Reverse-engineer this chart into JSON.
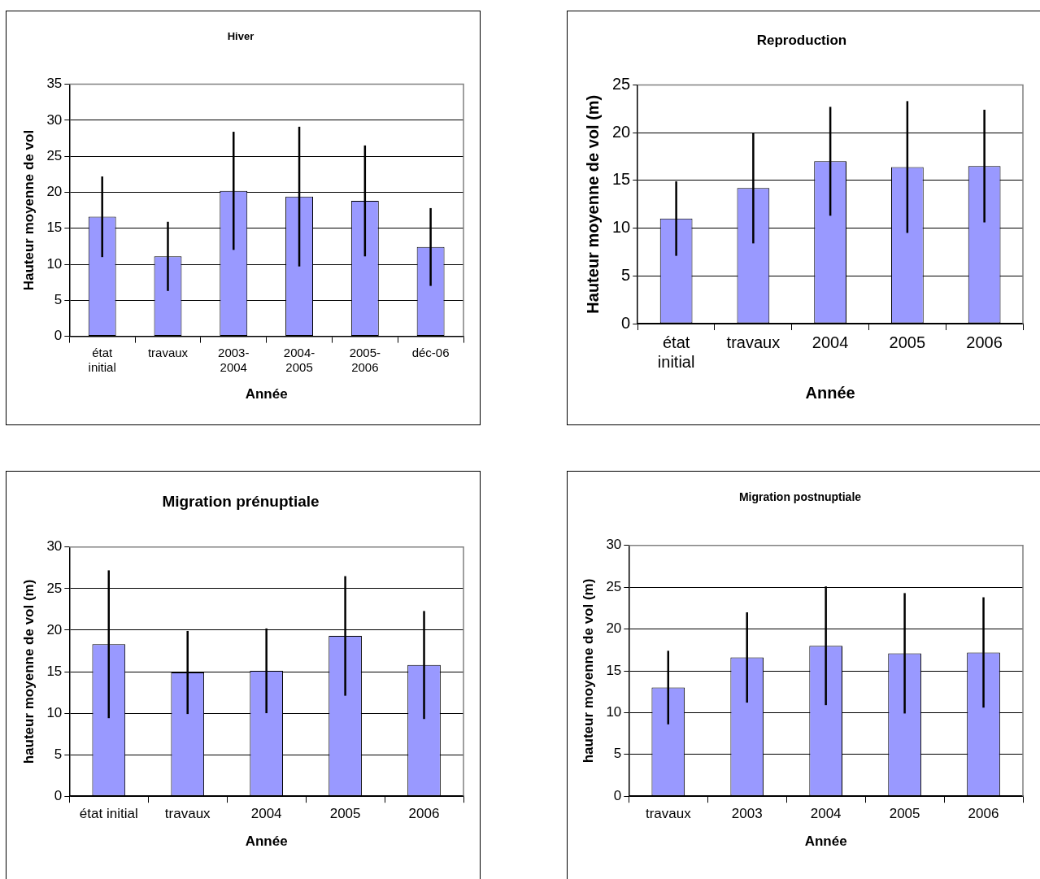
{
  "chart_data": [
    {
      "type": "bar",
      "title": "Hiver",
      "xlabel": "Année",
      "ylabel": "Hauteur moyenne de vol",
      "categories": [
        "état initial",
        "travaux",
        "2003-2004",
        "2004-2005",
        "2005-2006",
        "déc-06"
      ],
      "values": [
        16.6,
        11.1,
        20.2,
        19.4,
        18.8,
        12.4
      ],
      "errors": [
        5.6,
        4.8,
        8.2,
        9.7,
        7.7,
        5.4
      ],
      "color": "#9999ff",
      "ylim": [
        0,
        35
      ],
      "yticks": [
        0,
        5,
        10,
        15,
        20,
        25,
        30,
        35
      ],
      "grid": "y"
    },
    {
      "type": "bar",
      "title": "Reproduction",
      "xlabel": "Année",
      "ylabel": "Hauteur moyenne de vol (m)",
      "categories": [
        "état initial",
        "travaux",
        "2004",
        "2005",
        "2006"
      ],
      "values": [
        11.0,
        14.2,
        17.0,
        16.4,
        16.5
      ],
      "errors": [
        3.9,
        5.8,
        5.7,
        6.9,
        5.9
      ],
      "color": "#9999ff",
      "ylim": [
        0,
        25
      ],
      "yticks": [
        0,
        5,
        10,
        15,
        20,
        25
      ],
      "grid": "y"
    },
    {
      "type": "bar",
      "title": "Migration prénuptiale",
      "xlabel": "Année",
      "ylabel": "hauteur moyenne de vol (m)",
      "categories": [
        "état initial",
        "travaux",
        "2004",
        "2005",
        "2006"
      ],
      "values": [
        18.3,
        14.9,
        15.1,
        19.3,
        15.8
      ],
      "errors": [
        8.9,
        5.0,
        5.1,
        7.2,
        6.5
      ],
      "color": "#9999ff",
      "ylim": [
        0,
        30
      ],
      "yticks": [
        0,
        5,
        10,
        15,
        20,
        25,
        30
      ],
      "grid": "y"
    },
    {
      "type": "bar",
      "title": "Migration postnuptiale",
      "xlabel": "Année",
      "ylabel": "hauteur moyenne de vol (m)",
      "categories": [
        "travaux",
        "2003",
        "2004",
        "2005",
        "2006"
      ],
      "values": [
        13.0,
        16.6,
        18.0,
        17.1,
        17.2
      ],
      "errors": [
        4.4,
        5.4,
        7.1,
        7.2,
        6.6
      ],
      "color": "#9999ff",
      "ylim": [
        0,
        30
      ],
      "yticks": [
        0,
        5,
        10,
        15,
        20,
        25,
        30
      ],
      "grid": "y"
    }
  ]
}
